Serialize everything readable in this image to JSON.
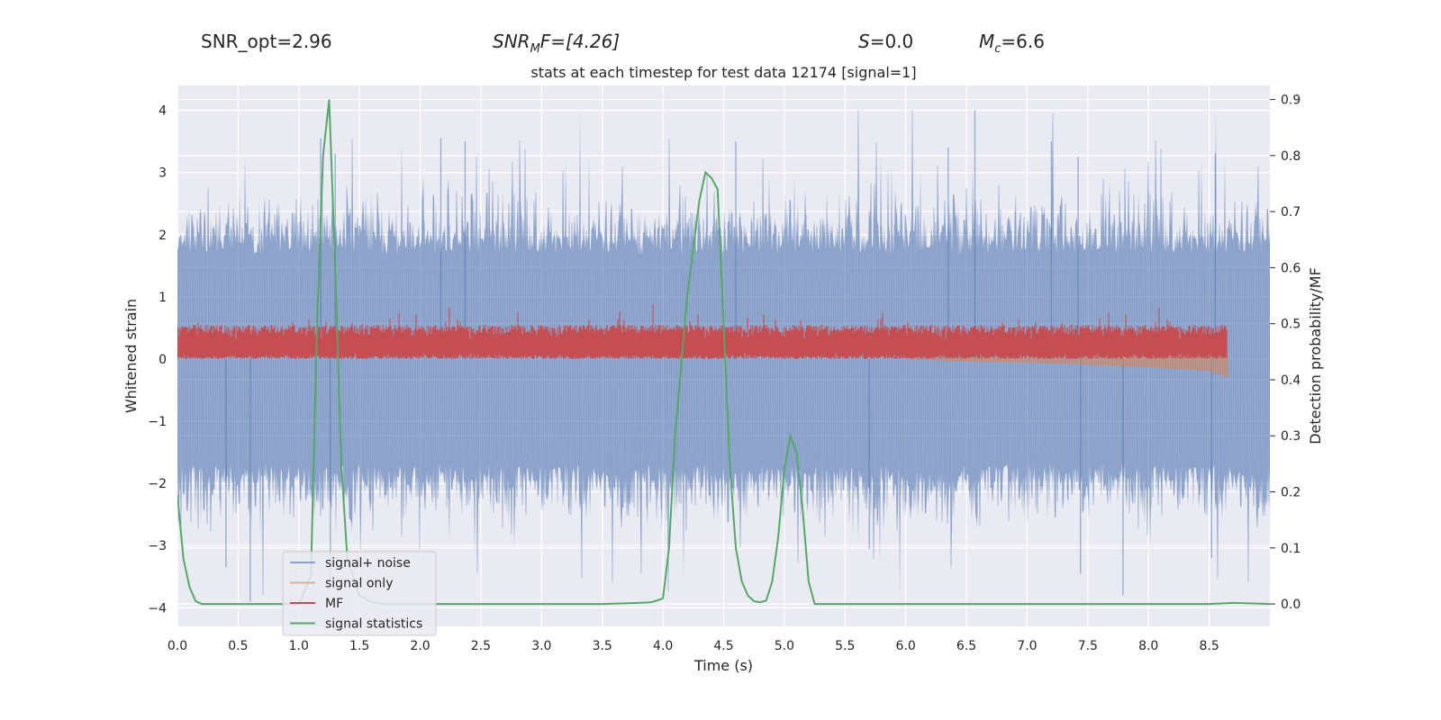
{
  "header": {
    "snr_opt": "SNR_opt=2.96",
    "snr_mf_base": "SNR",
    "snr_mf_sub": "M",
    "snr_mf_suffix": "F=[4.26]",
    "s_label": "S",
    "s_value": "=0.0",
    "mc_label": "M",
    "mc_sub": "c",
    "mc_value": "=6.6"
  },
  "chart_data": {
    "type": "line",
    "title": "stats at each timestep for test data 12174 [signal=1]",
    "xlabel": "Time (s)",
    "ylabel": "Whitened strain",
    "ylabel_right": "Detection probability/MF",
    "xlim": [
      0.0,
      9.0
    ],
    "ylim": [
      -4.3,
      4.4
    ],
    "ylim_right": [
      -0.04,
      0.925
    ],
    "xticks": [
      "0.0",
      "0.5",
      "1.0",
      "1.5",
      "2.0",
      "2.5",
      "3.0",
      "3.5",
      "4.0",
      "4.5",
      "5.0",
      "5.5",
      "6.0",
      "6.5",
      "7.0",
      "7.5",
      "8.0",
      "8.5"
    ],
    "yticks": [
      "−4",
      "−3",
      "−2",
      "−1",
      "0",
      "1",
      "2",
      "3",
      "4"
    ],
    "yticks_right": [
      "0.0",
      "0.1",
      "0.2",
      "0.3",
      "0.4",
      "0.5",
      "0.6",
      "0.7",
      "0.8",
      "0.9"
    ],
    "legend_position": "lower-left",
    "series": [
      {
        "name": "signal+ noise",
        "color": "#4c72b0",
        "axis": "left",
        "band": {
          "lower": -1.9,
          "upper": 1.9
        },
        "spike_range": [
          -3.9,
          4.0
        ]
      },
      {
        "name": "signal only",
        "color": "#dd8452",
        "axis": "left",
        "chirp": {
          "start": 6.0,
          "end": 8.65,
          "points": [
            [
              6.0,
              0.0
            ],
            [
              6.5,
              -0.03
            ],
            [
              7.0,
              -0.05
            ],
            [
              7.5,
              -0.08
            ],
            [
              8.0,
              -0.12
            ],
            [
              8.5,
              -0.18
            ],
            [
              8.65,
              -0.28
            ]
          ]
        }
      },
      {
        "name": "MF",
        "color": "#c44e52",
        "axis": "left",
        "band": {
          "lower": 0.0,
          "upper": 0.55
        },
        "spike_max": 1.0
      },
      {
        "name": "signal statistics",
        "color": "#55a868",
        "axis": "right",
        "x": [
          0.0,
          0.05,
          0.1,
          0.15,
          0.2,
          0.3,
          0.4,
          0.5,
          0.7,
          0.9,
          1.0,
          1.1,
          1.15,
          1.2,
          1.25,
          1.3,
          1.35,
          1.4,
          1.5,
          1.6,
          1.7,
          2.0,
          2.5,
          3.0,
          3.5,
          3.8,
          3.9,
          3.95,
          4.0,
          4.05,
          4.1,
          4.2,
          4.3,
          4.35,
          4.4,
          4.45,
          4.5,
          4.55,
          4.6,
          4.65,
          4.7,
          4.75,
          4.8,
          4.85,
          4.9,
          4.95,
          5.0,
          5.05,
          5.1,
          5.15,
          5.2,
          5.25,
          5.3,
          5.5,
          6.0,
          7.0,
          8.0,
          8.5,
          8.7,
          9.0
        ],
        "y": [
          0.195,
          0.08,
          0.03,
          0.005,
          0.0,
          0.0,
          0.0,
          0.0,
          0.0,
          0.0,
          0.0,
          0.05,
          0.5,
          0.8,
          0.9,
          0.6,
          0.25,
          0.08,
          0.015,
          0.003,
          0.0,
          0.0,
          0.0,
          0.0,
          0.0,
          0.002,
          0.003,
          0.006,
          0.01,
          0.1,
          0.3,
          0.55,
          0.72,
          0.77,
          0.76,
          0.74,
          0.5,
          0.25,
          0.1,
          0.04,
          0.015,
          0.005,
          0.003,
          0.006,
          0.04,
          0.12,
          0.24,
          0.3,
          0.27,
          0.17,
          0.04,
          0.0,
          0.0,
          0.0,
          0.0,
          0.0,
          0.0,
          0.0,
          0.002,
          0.0
        ]
      }
    ]
  }
}
